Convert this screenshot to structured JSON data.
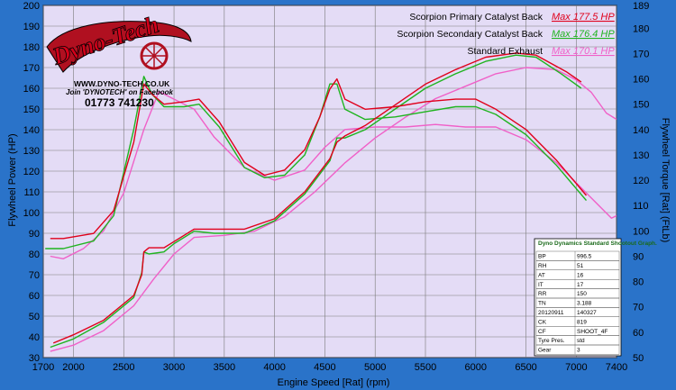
{
  "colors": {
    "background": "#2a73c9",
    "plot_bg": "#e4dcf6",
    "grid": "#7a7a7a",
    "primary": "#e0001b",
    "secondary": "#1fb41f",
    "standard": "#f060c8"
  },
  "branding": {
    "logo": "Dyno-Tech",
    "website": "WWW.DYNO-TECH.CO.UK",
    "facebook": "Join 'DYNOTECH' on Facebook",
    "phone": "01773 741230"
  },
  "info_table": {
    "title": "Dyno Dynamics Standard Shootout Graph.",
    "rows": [
      [
        "BP",
        "996.5"
      ],
      [
        "RH",
        "51"
      ],
      [
        "AT",
        "16"
      ],
      [
        "IT",
        "17"
      ],
      [
        "RR",
        "150"
      ],
      [
        "TN",
        "3.188"
      ],
      [
        "20120911",
        "140327"
      ],
      [
        "CK",
        "819"
      ],
      [
        "CF",
        "SHOOT_4F"
      ],
      [
        "Tyre Pres.",
        "std"
      ],
      [
        "Gear",
        "3"
      ]
    ]
  },
  "chart_data": {
    "type": "line",
    "xlabel": "Engine Speed [Rat] (rpm)",
    "ylabel": "Flywheel Power (HP)",
    "y2label": "Flywheel Torque [Rat] (FtLb)",
    "xlim": [
      1700,
      7400
    ],
    "ylim": [
      30,
      200
    ],
    "y2lim": [
      50,
      189
    ],
    "xticks": [
      1700,
      2000,
      2500,
      3000,
      3500,
      4000,
      4500,
      5000,
      5500,
      6000,
      6500,
      7000,
      7400
    ],
    "yticks": [
      30,
      40,
      50,
      60,
      70,
      80,
      90,
      100,
      110,
      120,
      130,
      140,
      150,
      160,
      170,
      180,
      190,
      200
    ],
    "y2ticks": [
      50,
      60,
      70,
      80,
      90,
      100,
      110,
      120,
      130,
      140,
      150,
      160,
      170,
      180,
      189
    ],
    "grid": true,
    "legend_position": "top-right",
    "series": [
      {
        "name": "Scorpion Primary Catalyst Back",
        "max_label": "Max 177.5 HP",
        "color": "#e0001b",
        "power": [
          [
            1800,
            37
          ],
          [
            2000,
            41
          ],
          [
            2300,
            48
          ],
          [
            2600,
            60
          ],
          [
            2680,
            70
          ],
          [
            2700,
            81
          ],
          [
            2750,
            83
          ],
          [
            2900,
            83
          ],
          [
            3000,
            86
          ],
          [
            3200,
            92
          ],
          [
            3400,
            92
          ],
          [
            3700,
            92
          ],
          [
            4000,
            97
          ],
          [
            4300,
            110
          ],
          [
            4550,
            126
          ],
          [
            4620,
            134
          ],
          [
            4700,
            137
          ],
          [
            4900,
            142
          ],
          [
            5200,
            152
          ],
          [
            5500,
            162
          ],
          [
            5800,
            169
          ],
          [
            6100,
            175
          ],
          [
            6400,
            177
          ],
          [
            6600,
            176
          ],
          [
            6900,
            168
          ],
          [
            7050,
            163
          ]
        ],
        "torque": [
          [
            1770,
            97
          ],
          [
            1900,
            97
          ],
          [
            2200,
            99
          ],
          [
            2400,
            108
          ],
          [
            2600,
            135
          ],
          [
            2700,
            158
          ],
          [
            2780,
            154
          ],
          [
            2900,
            150
          ],
          [
            3100,
            151
          ],
          [
            3250,
            152
          ],
          [
            3450,
            143
          ],
          [
            3700,
            127
          ],
          [
            3900,
            122
          ],
          [
            4100,
            124
          ],
          [
            4300,
            132
          ],
          [
            4450,
            145
          ],
          [
            4550,
            156
          ],
          [
            4620,
            160
          ],
          [
            4700,
            152
          ],
          [
            4900,
            148
          ],
          [
            5200,
            149
          ],
          [
            5500,
            151
          ],
          [
            5800,
            152
          ],
          [
            6000,
            152
          ],
          [
            6200,
            148
          ],
          [
            6500,
            140
          ],
          [
            6800,
            128
          ],
          [
            7100,
            114
          ]
        ]
      },
      {
        "name": "Scorpion Secondary Catalyst Back",
        "max_label": "Max 176.4 HP",
        "color": "#1fb41f",
        "power": [
          [
            1770,
            35
          ],
          [
            2000,
            39
          ],
          [
            2300,
            47
          ],
          [
            2600,
            59
          ],
          [
            2680,
            71
          ],
          [
            2700,
            81
          ],
          [
            2750,
            80
          ],
          [
            2900,
            81
          ],
          [
            3000,
            85
          ],
          [
            3200,
            91
          ],
          [
            3400,
            90
          ],
          [
            3700,
            90
          ],
          [
            4000,
            96
          ],
          [
            4300,
            109
          ],
          [
            4550,
            125
          ],
          [
            4620,
            136
          ],
          [
            4700,
            136
          ],
          [
            4900,
            140
          ],
          [
            5200,
            150
          ],
          [
            5500,
            160
          ],
          [
            5800,
            167
          ],
          [
            6100,
            173
          ],
          [
            6400,
            176
          ],
          [
            6600,
            175
          ],
          [
            6850,
            167
          ],
          [
            7050,
            160
          ]
        ],
        "torque": [
          [
            1720,
            93
          ],
          [
            1900,
            93
          ],
          [
            2200,
            96
          ],
          [
            2400,
            106
          ],
          [
            2600,
            140
          ],
          [
            2700,
            161
          ],
          [
            2780,
            154
          ],
          [
            2900,
            149
          ],
          [
            3100,
            149
          ],
          [
            3250,
            150
          ],
          [
            3450,
            141
          ],
          [
            3700,
            125
          ],
          [
            3900,
            121
          ],
          [
            4100,
            122
          ],
          [
            4300,
            130
          ],
          [
            4450,
            145
          ],
          [
            4550,
            158
          ],
          [
            4620,
            158
          ],
          [
            4700,
            148
          ],
          [
            4900,
            144
          ],
          [
            5200,
            145
          ],
          [
            5500,
            147
          ],
          [
            5800,
            149
          ],
          [
            6000,
            149
          ],
          [
            6200,
            146
          ],
          [
            6500,
            138
          ],
          [
            6800,
            126
          ],
          [
            7100,
            112
          ]
        ]
      },
      {
        "name": "Standard Exhaust",
        "max_label": "Max 170.1 HP",
        "color": "#f060c8",
        "power": [
          [
            1770,
            33
          ],
          [
            2000,
            36
          ],
          [
            2300,
            43
          ],
          [
            2600,
            55
          ],
          [
            2800,
            68
          ],
          [
            3000,
            80
          ],
          [
            3200,
            88
          ],
          [
            3500,
            89
          ],
          [
            3800,
            91
          ],
          [
            4100,
            98
          ],
          [
            4400,
            110
          ],
          [
            4700,
            124
          ],
          [
            5000,
            136
          ],
          [
            5300,
            146
          ],
          [
            5600,
            155
          ],
          [
            5900,
            161
          ],
          [
            6200,
            167
          ],
          [
            6500,
            170
          ],
          [
            6800,
            169
          ],
          [
            7000,
            164
          ],
          [
            7150,
            158
          ],
          [
            7300,
            148
          ],
          [
            7400,
            145
          ]
        ],
        "torque": [
          [
            1770,
            90
          ],
          [
            1900,
            89
          ],
          [
            2100,
            93
          ],
          [
            2300,
            100
          ],
          [
            2500,
            115
          ],
          [
            2700,
            140
          ],
          [
            2850,
            155
          ],
          [
            3000,
            152
          ],
          [
            3200,
            148
          ],
          [
            3400,
            137
          ],
          [
            3700,
            125
          ],
          [
            4000,
            120
          ],
          [
            4300,
            124
          ],
          [
            4500,
            133
          ],
          [
            4700,
            140
          ],
          [
            5000,
            141
          ],
          [
            5300,
            141
          ],
          [
            5600,
            142
          ],
          [
            5900,
            141
          ],
          [
            6200,
            141
          ],
          [
            6500,
            136
          ],
          [
            6800,
            127
          ],
          [
            7100,
            115
          ],
          [
            7350,
            105
          ],
          [
            7400,
            106
          ]
        ]
      }
    ]
  }
}
